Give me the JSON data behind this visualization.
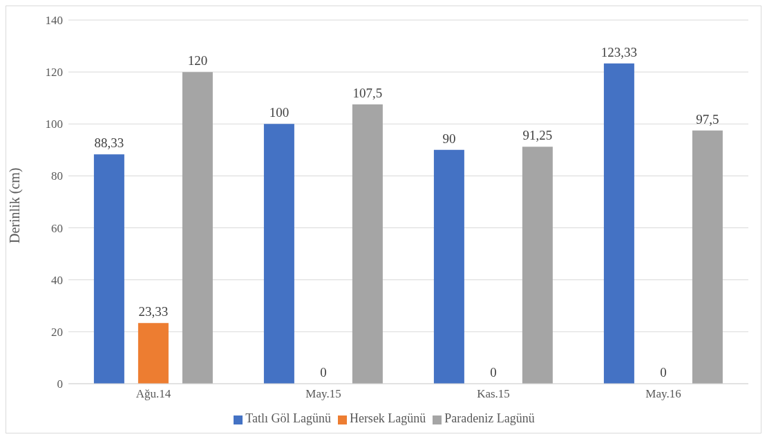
{
  "chart_data": {
    "type": "bar",
    "ylabel": "Derinlik (cm)",
    "categories": [
      "Ağu.14",
      "May.15",
      "Kas.15",
      "May.16"
    ],
    "series": [
      {
        "name": "Tatlı Göl Lagünü",
        "color": "#4472c4",
        "values": [
          88.33,
          100,
          90,
          123.33
        ],
        "value_labels": [
          "88,33",
          "100",
          "90",
          "123,33"
        ]
      },
      {
        "name": "Hersek Lagünü",
        "color": "#ed7d31",
        "values": [
          23.33,
          0,
          0,
          0
        ],
        "value_labels": [
          "23,33",
          "0",
          "0",
          "0"
        ]
      },
      {
        "name": "Paradeniz Lagünü",
        "color": "#a5a5a5",
        "values": [
          120,
          107.5,
          91.25,
          97.5
        ],
        "value_labels": [
          "120",
          "107,5",
          "91,25",
          "97,5"
        ]
      }
    ],
    "ylim": [
      0,
      140
    ],
    "yticks": [
      0,
      20,
      40,
      60,
      80,
      100,
      120,
      140
    ],
    "grid": "y",
    "legend": "bottom"
  }
}
